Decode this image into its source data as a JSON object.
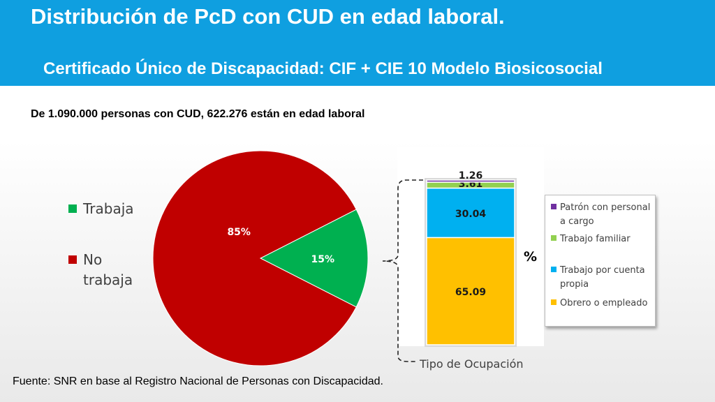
{
  "header": {
    "title": "Distribución de PcD con CUD en edad laboral.",
    "subtitle": "Certificado Único de Discapacidad: CIF + CIE 10 Modelo Biosicosocial",
    "background_color": "#0f9fe0"
  },
  "note": "De 1.090.000 personas con CUD, 622.276 están en edad laboral",
  "source": "Fuente: SNR en base al Registro Nacional de Personas con Discapacidad.",
  "chart_data": [
    {
      "type": "pie",
      "slices": [
        {
          "label": "Trabaja",
          "value": 15,
          "display": "15%",
          "color": "#00b050"
        },
        {
          "label": "No trabaja",
          "value": 85,
          "display": "85%",
          "color": "#c00000"
        }
      ],
      "legend": [
        {
          "label": "Trabaja",
          "color": "#00b050"
        },
        {
          "label": "No trabaja",
          "lines": [
            "No",
            "trabaja"
          ],
          "color": "#c00000"
        }
      ],
      "legend_position": "left"
    },
    {
      "type": "bar",
      "stacked": true,
      "unit_label": "%",
      "xlabel": "Tipo de Ocupación",
      "ylim": [
        0,
        100
      ],
      "series": [
        {
          "name": "Obrero o empleado",
          "value": 65.09,
          "display": "65.09",
          "color": "#ffc000"
        },
        {
          "name": "Trabajo por cuenta propia",
          "value": 30.04,
          "display": "30.04",
          "color": "#00b0f0"
        },
        {
          "name": "Trabajo familiar",
          "value": 3.61,
          "display": "3.61",
          "color": "#92d050"
        },
        {
          "name": "Patrón con personal a cargo",
          "value": 1.26,
          "display": "1.26",
          "color": "#7030a0"
        }
      ],
      "legend": [
        {
          "label": "Patrón con personal a cargo",
          "lines": [
            "Patrón con personal",
            "a cargo"
          ],
          "color": "#7030a0"
        },
        {
          "label": "Trabajo familiar",
          "lines": [
            "Trabajo familiar"
          ],
          "color": "#92d050"
        },
        {
          "label": "Trabajo por cuenta propia",
          "lines": [
            "Trabajo por cuenta",
            "propia"
          ],
          "color": "#00b0f0"
        },
        {
          "label": "Obrero o empleado",
          "lines": [
            "Obrero o empleado"
          ],
          "color": "#ffc000"
        }
      ],
      "legend_position": "right"
    }
  ]
}
